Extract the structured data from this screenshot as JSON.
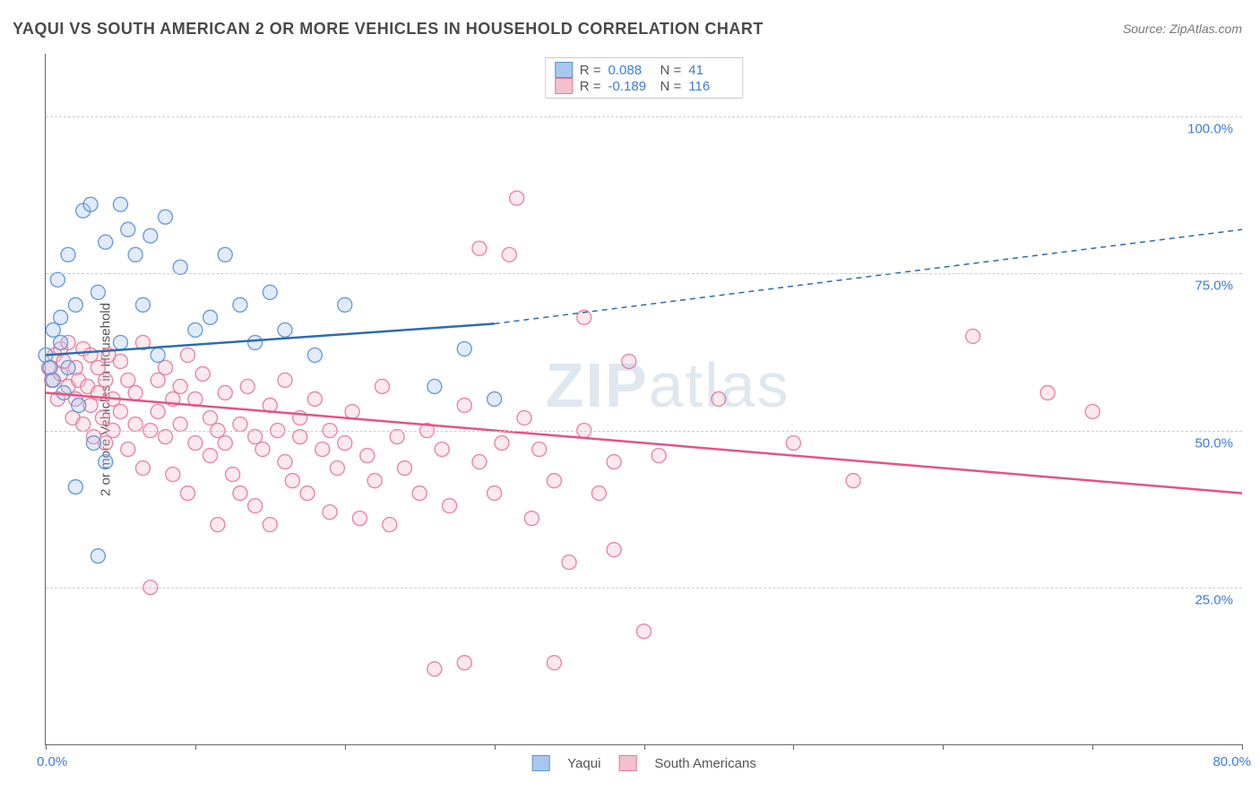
{
  "title": "YAQUI VS SOUTH AMERICAN 2 OR MORE VEHICLES IN HOUSEHOLD CORRELATION CHART",
  "source_label": "Source: ZipAtlas.com",
  "watermark_bold": "ZIP",
  "watermark_light": "atlas",
  "chart": {
    "type": "scatter-with-regression",
    "xlim": [
      0,
      80
    ],
    "ylim": [
      0,
      110
    ],
    "x_origin_label": "0.0%",
    "x_max_label": "80.0%",
    "x_ticks": [
      0,
      10,
      20,
      30,
      40,
      50,
      60,
      70,
      80
    ],
    "y_ticks": [
      {
        "v": 25,
        "label": "25.0%"
      },
      {
        "v": 50,
        "label": "50.0%"
      },
      {
        "v": 75,
        "label": "75.0%"
      },
      {
        "v": 100,
        "label": "100.0%"
      }
    ],
    "y_axis_title": "2 or more Vehicles in Household",
    "grid_color": "#cccccc",
    "axis_color": "#666666",
    "tick_label_color": "#3b7dd8",
    "background_color": "#ffffff",
    "marker_radius": 8,
    "marker_fill_opacity": 0.35,
    "marker_stroke_opacity": 0.9,
    "line_width": 2.5,
    "title_fontsize": 18,
    "label_fontsize": 15,
    "series": [
      {
        "name": "Yaqui",
        "color_fill": "#a9c7ed",
        "color_stroke": "#5d93d6",
        "line_color": "#2b6cb0",
        "stats": {
          "R_label": "R =",
          "R": "0.088",
          "N_label": "N =",
          "N": "41"
        },
        "regression": {
          "x1": 0,
          "y1": 62,
          "x_solid_end": 30,
          "y_solid_end": 67,
          "x2": 80,
          "y2": 82,
          "dash_after_solid": true
        },
        "points": [
          [
            0,
            62
          ],
          [
            0.3,
            60
          ],
          [
            0.5,
            66
          ],
          [
            0.5,
            58
          ],
          [
            0.8,
            74
          ],
          [
            1,
            64
          ],
          [
            1,
            68
          ],
          [
            1.2,
            56
          ],
          [
            1.5,
            78
          ],
          [
            1.5,
            60
          ],
          [
            2,
            70
          ],
          [
            2,
            41
          ],
          [
            2.2,
            54
          ],
          [
            2.5,
            85
          ],
          [
            3,
            86
          ],
          [
            3.2,
            48
          ],
          [
            3.5,
            72
          ],
          [
            3.5,
            30
          ],
          [
            4,
            80
          ],
          [
            4,
            45
          ],
          [
            5,
            86
          ],
          [
            5,
            64
          ],
          [
            5.5,
            82
          ],
          [
            6,
            78
          ],
          [
            6.5,
            70
          ],
          [
            7,
            81
          ],
          [
            7.5,
            62
          ],
          [
            8,
            84
          ],
          [
            9,
            76
          ],
          [
            10,
            66
          ],
          [
            11,
            68
          ],
          [
            12,
            78
          ],
          [
            13,
            70
          ],
          [
            14,
            64
          ],
          [
            15,
            72
          ],
          [
            16,
            66
          ],
          [
            18,
            62
          ],
          [
            20,
            70
          ],
          [
            26,
            57
          ],
          [
            28,
            63
          ],
          [
            30,
            55
          ]
        ]
      },
      {
        "name": "South Americans",
        "color_fill": "#f5c0cd",
        "color_stroke": "#e77a9a",
        "line_color": "#e55383",
        "stats": {
          "R_label": "R =",
          "R": "-0.189",
          "N_label": "N =",
          "N": "116"
        },
        "regression": {
          "x1": 0,
          "y1": 56,
          "x_solid_end": 80,
          "y_solid_end": 40,
          "x2": 80,
          "y2": 40,
          "dash_after_solid": false
        },
        "points": [
          [
            0.2,
            60
          ],
          [
            0.4,
            58
          ],
          [
            0.6,
            62
          ],
          [
            0.8,
            55
          ],
          [
            1,
            63
          ],
          [
            1,
            59
          ],
          [
            1.2,
            61
          ],
          [
            1.5,
            57
          ],
          [
            1.5,
            64
          ],
          [
            1.8,
            52
          ],
          [
            2,
            60
          ],
          [
            2,
            55
          ],
          [
            2.2,
            58
          ],
          [
            2.5,
            51
          ],
          [
            2.5,
            63
          ],
          [
            2.8,
            57
          ],
          [
            3,
            54
          ],
          [
            3,
            62
          ],
          [
            3.2,
            49
          ],
          [
            3.5,
            60
          ],
          [
            3.5,
            56
          ],
          [
            3.8,
            52
          ],
          [
            4,
            58
          ],
          [
            4,
            48
          ],
          [
            4.2,
            62
          ],
          [
            4.5,
            50
          ],
          [
            4.5,
            55
          ],
          [
            5,
            53
          ],
          [
            5,
            61
          ],
          [
            5.5,
            47
          ],
          [
            5.5,
            58
          ],
          [
            6,
            51
          ],
          [
            6,
            56
          ],
          [
            6.5,
            64
          ],
          [
            6.5,
            44
          ],
          [
            7,
            50
          ],
          [
            7,
            25
          ],
          [
            7.5,
            58
          ],
          [
            7.5,
            53
          ],
          [
            8,
            49
          ],
          [
            8,
            60
          ],
          [
            8.5,
            55
          ],
          [
            8.5,
            43
          ],
          [
            9,
            51
          ],
          [
            9,
            57
          ],
          [
            9.5,
            62
          ],
          [
            9.5,
            40
          ],
          [
            10,
            48
          ],
          [
            10,
            55
          ],
          [
            10.5,
            59
          ],
          [
            11,
            46
          ],
          [
            11,
            52
          ],
          [
            11.5,
            35
          ],
          [
            11.5,
            50
          ],
          [
            12,
            56
          ],
          [
            12,
            48
          ],
          [
            12.5,
            43
          ],
          [
            13,
            51
          ],
          [
            13,
            40
          ],
          [
            13.5,
            57
          ],
          [
            14,
            49
          ],
          [
            14,
            38
          ],
          [
            14.5,
            47
          ],
          [
            15,
            54
          ],
          [
            15,
            35
          ],
          [
            15.5,
            50
          ],
          [
            16,
            45
          ],
          [
            16,
            58
          ],
          [
            16.5,
            42
          ],
          [
            17,
            49
          ],
          [
            17,
            52
          ],
          [
            17.5,
            40
          ],
          [
            18,
            55
          ],
          [
            18.5,
            47
          ],
          [
            19,
            37
          ],
          [
            19,
            50
          ],
          [
            19.5,
            44
          ],
          [
            20,
            48
          ],
          [
            20.5,
            53
          ],
          [
            21,
            36
          ],
          [
            21.5,
            46
          ],
          [
            22,
            42
          ],
          [
            22.5,
            57
          ],
          [
            23,
            35
          ],
          [
            23.5,
            49
          ],
          [
            24,
            44
          ],
          [
            25,
            40
          ],
          [
            25.5,
            50
          ],
          [
            26,
            12
          ],
          [
            26.5,
            47
          ],
          [
            27,
            38
          ],
          [
            28,
            54
          ],
          [
            28,
            13
          ],
          [
            29,
            45
          ],
          [
            29,
            79
          ],
          [
            30,
            40
          ],
          [
            30.5,
            48
          ],
          [
            31,
            78
          ],
          [
            31.5,
            87
          ],
          [
            32,
            52
          ],
          [
            32.5,
            36
          ],
          [
            33,
            47
          ],
          [
            34,
            42
          ],
          [
            34,
            13
          ],
          [
            35,
            29
          ],
          [
            36,
            50
          ],
          [
            36,
            68
          ],
          [
            37,
            40
          ],
          [
            38,
            45
          ],
          [
            38,
            31
          ],
          [
            39,
            61
          ],
          [
            40,
            18
          ],
          [
            41,
            46
          ],
          [
            45,
            55
          ],
          [
            50,
            48
          ],
          [
            54,
            42
          ],
          [
            62,
            65
          ],
          [
            67,
            56
          ],
          [
            70,
            53
          ]
        ]
      }
    ],
    "legend_bottom": [
      {
        "label": "Yaqui",
        "fill": "#a9c7ed",
        "stroke": "#5d93d6"
      },
      {
        "label": "South Americans",
        "fill": "#f5c0cd",
        "stroke": "#e77a9a"
      }
    ]
  }
}
